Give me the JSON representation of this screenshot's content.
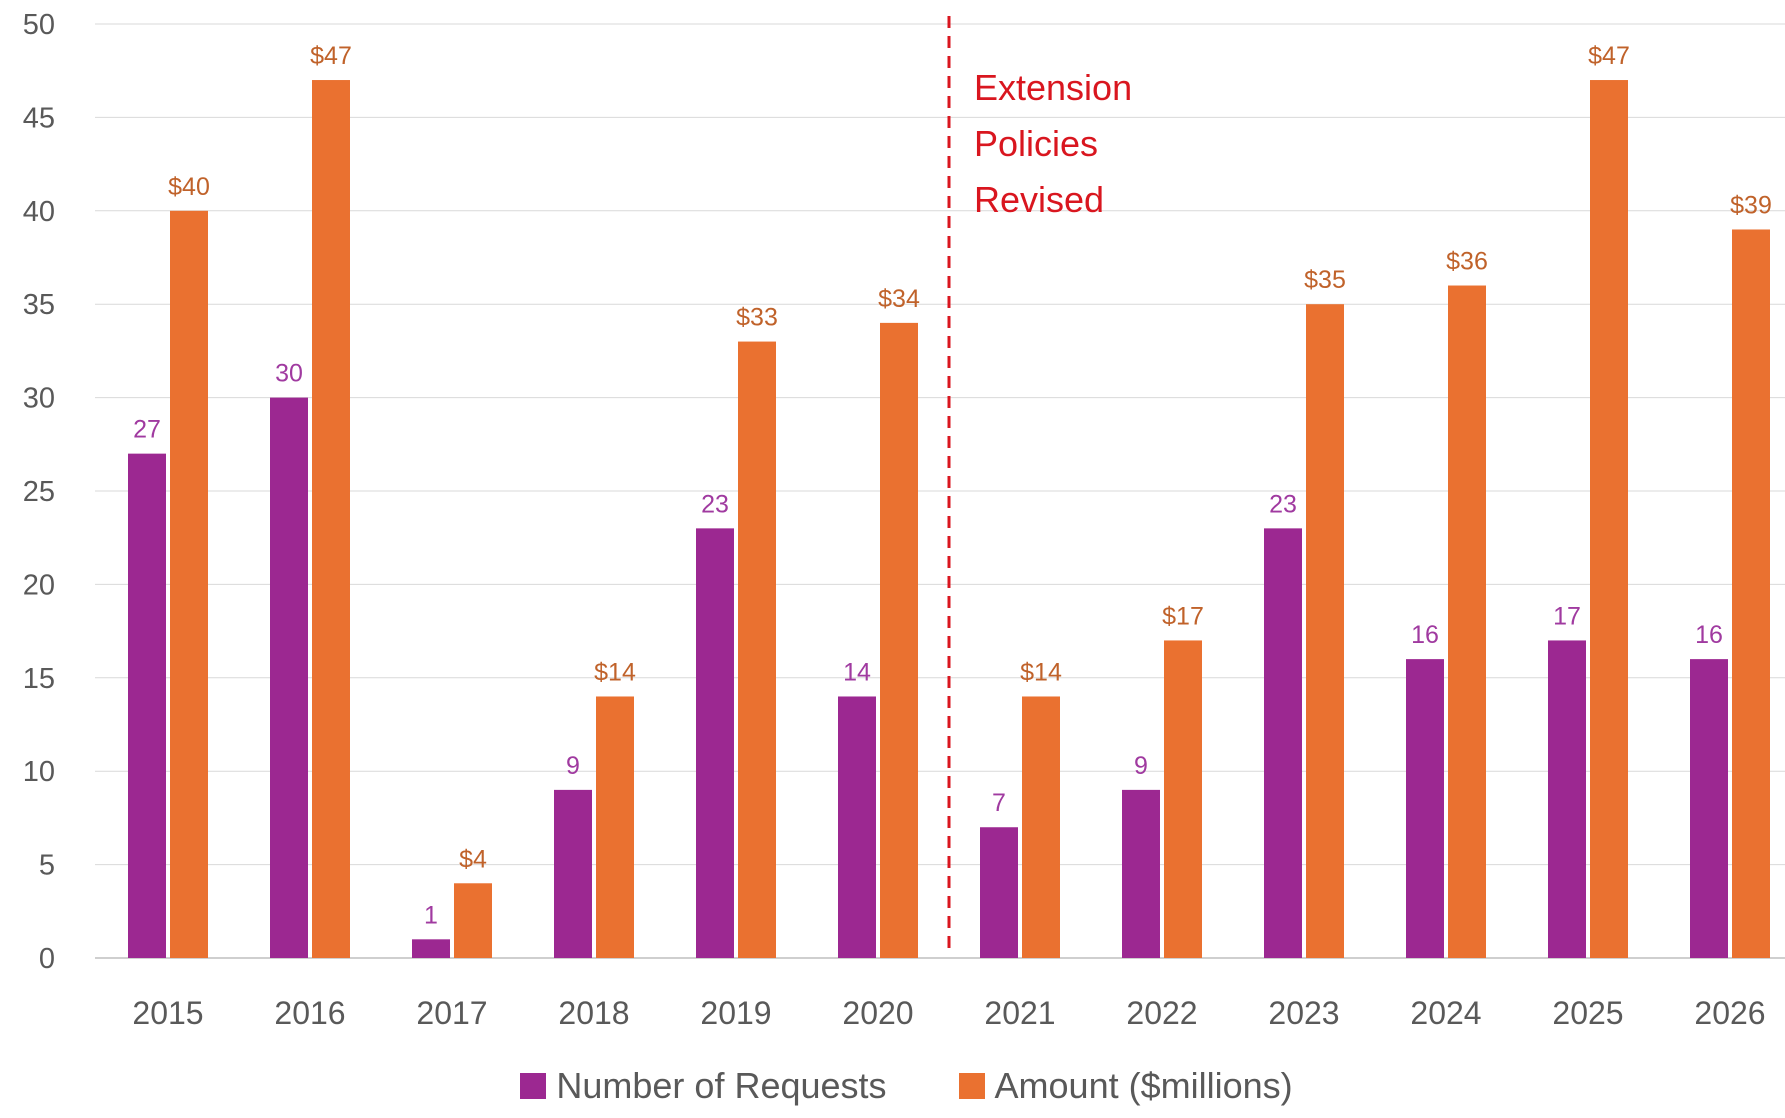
{
  "chart_data": {
    "type": "bar",
    "categories": [
      "2015",
      "2016",
      "2017",
      "2018",
      "2019",
      "2020",
      "2021",
      "2022",
      "2023",
      "2024",
      "2025",
      "2026"
    ],
    "series": [
      {
        "name": "Number of Requests",
        "values": [
          27,
          30,
          1,
          9,
          23,
          14,
          7,
          9,
          23,
          16,
          17,
          16
        ],
        "color": "#9c2891",
        "labels": [
          "27",
          "30",
          "1",
          "9",
          "23",
          "14",
          "7",
          "9",
          "23",
          "16",
          "17",
          "16"
        ]
      },
      {
        "name": "Amount ($millions)",
        "values": [
          40,
          47,
          4,
          14,
          33,
          34,
          14,
          17,
          35,
          36,
          47,
          39
        ],
        "color": "#ea7130",
        "labels": [
          "$40",
          "$47",
          "$4",
          "$14",
          "$33",
          "$34",
          "$14",
          "$17",
          "$35",
          "$36",
          "$47",
          "$39"
        ]
      }
    ],
    "ylim": [
      0,
      50
    ],
    "yticks": [
      0,
      5,
      10,
      15,
      20,
      25,
      30,
      35,
      40,
      45,
      50
    ],
    "grid": true,
    "legend_position": "bottom",
    "annotation": {
      "text_lines": [
        "Extension",
        "Policies",
        "Revised"
      ],
      "between": [
        "2020",
        "2021"
      ],
      "color": "#d9161f",
      "style": "dashed vertical line"
    }
  }
}
